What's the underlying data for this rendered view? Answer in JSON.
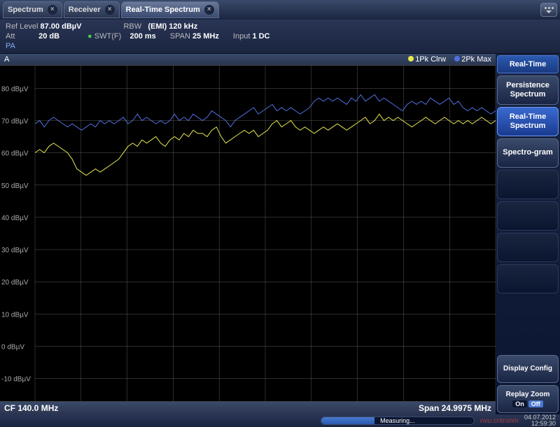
{
  "tabs": [
    {
      "label": "Spectrum",
      "active": false
    },
    {
      "label": "Receiver",
      "active": false
    },
    {
      "label": "Real-Time Spectrum",
      "active": true
    }
  ],
  "settings": {
    "ref_level_label": "Ref Level",
    "ref_level_val": "87.00 dBµV",
    "att_label": "Att",
    "att_val": "20 dB",
    "rbw_label": "RBW",
    "rbw_val": "(EMI) 120 kHz",
    "swt_label": "SWT(F)",
    "swt_val": "200 ms",
    "span_label": "SPAN",
    "span_val": "25 MHz",
    "input_label": "Input",
    "input_val": "1 DC",
    "pa_label": "PA"
  },
  "chart": {
    "trace_label": "A",
    "legend1": "1Pk Clrw",
    "legend1_color": "#e8e850",
    "legend2": "2Pk Max",
    "legend2_color": "#5070e0",
    "cf_label": "CF 140.0 MHz",
    "span_label": "Span 24.9975 MHz",
    "ylim": [
      -17,
      87
    ],
    "ylabels": [
      "80 dBµV",
      "70 dBµV",
      "60 dBµV",
      "50 dBµV",
      "40 dBµV",
      "30 dBµV",
      "20 dBµV",
      "10 dBµV",
      "0 dBµV",
      "-10 dBµV"
    ],
    "yvalues": [
      80,
      70,
      60,
      50,
      40,
      30,
      20,
      10,
      0,
      -10
    ],
    "grid_color": "#5a5a5a",
    "bg_color": "#000000",
    "trace1_color": "#e8e850",
    "trace2_color": "#5070e0",
    "trace1": [
      60,
      61,
      60,
      62,
      63,
      62,
      61,
      60,
      58,
      55,
      54,
      53,
      54,
      55,
      54,
      55,
      56,
      57,
      58,
      60,
      62,
      63,
      62,
      64,
      63,
      64,
      65,
      63,
      62,
      64,
      65,
      64,
      66,
      65,
      67,
      66,
      66,
      65,
      67,
      68,
      65,
      63,
      64,
      65,
      66,
      67,
      66,
      67,
      65,
      66,
      67,
      69,
      70,
      68,
      69,
      70,
      68,
      67,
      68,
      67,
      66,
      67,
      68,
      67,
      68,
      69,
      68,
      67,
      68,
      69,
      70,
      71,
      69,
      70,
      72,
      70,
      71,
      70,
      71,
      70,
      69,
      68,
      69,
      70,
      71,
      70,
      69,
      70,
      71,
      70,
      69,
      70,
      69,
      70,
      69,
      70,
      71,
      70,
      69,
      70
    ],
    "trace2": [
      69,
      70,
      68,
      70,
      71,
      70,
      69,
      68,
      69,
      68,
      67,
      68,
      69,
      68,
      70,
      69,
      70,
      69,
      70,
      71,
      69,
      70,
      72,
      70,
      71,
      70,
      69,
      70,
      69,
      70,
      72,
      70,
      71,
      70,
      72,
      71,
      70,
      71,
      73,
      72,
      71,
      70,
      68,
      70,
      71,
      72,
      73,
      74,
      72,
      73,
      74,
      75,
      73,
      74,
      73,
      74,
      73,
      72,
      73,
      74,
      76,
      77,
      76,
      77,
      76,
      77,
      76,
      75,
      77,
      76,
      78,
      76,
      77,
      78,
      76,
      77,
      76,
      75,
      74,
      73,
      75,
      76,
      75,
      76,
      75,
      77,
      76,
      75,
      76,
      77,
      75,
      76,
      74,
      73,
      74,
      73,
      74,
      73,
      72,
      73
    ]
  },
  "sidebar": {
    "title": "Real-Time",
    "btn_persistence": "Persistence Spectrum",
    "btn_realtime": "Real-Time Spectrum",
    "btn_spectrogram": "Spectro-gram",
    "btn_display": "Display Config",
    "btn_replay": "Replay Zoom",
    "on": "On",
    "off": "Off"
  },
  "statusbar": {
    "measuring": "Measuring...",
    "watermark": "nvu.cntronm",
    "date": "04.07.2012",
    "time": "12:59:30"
  }
}
